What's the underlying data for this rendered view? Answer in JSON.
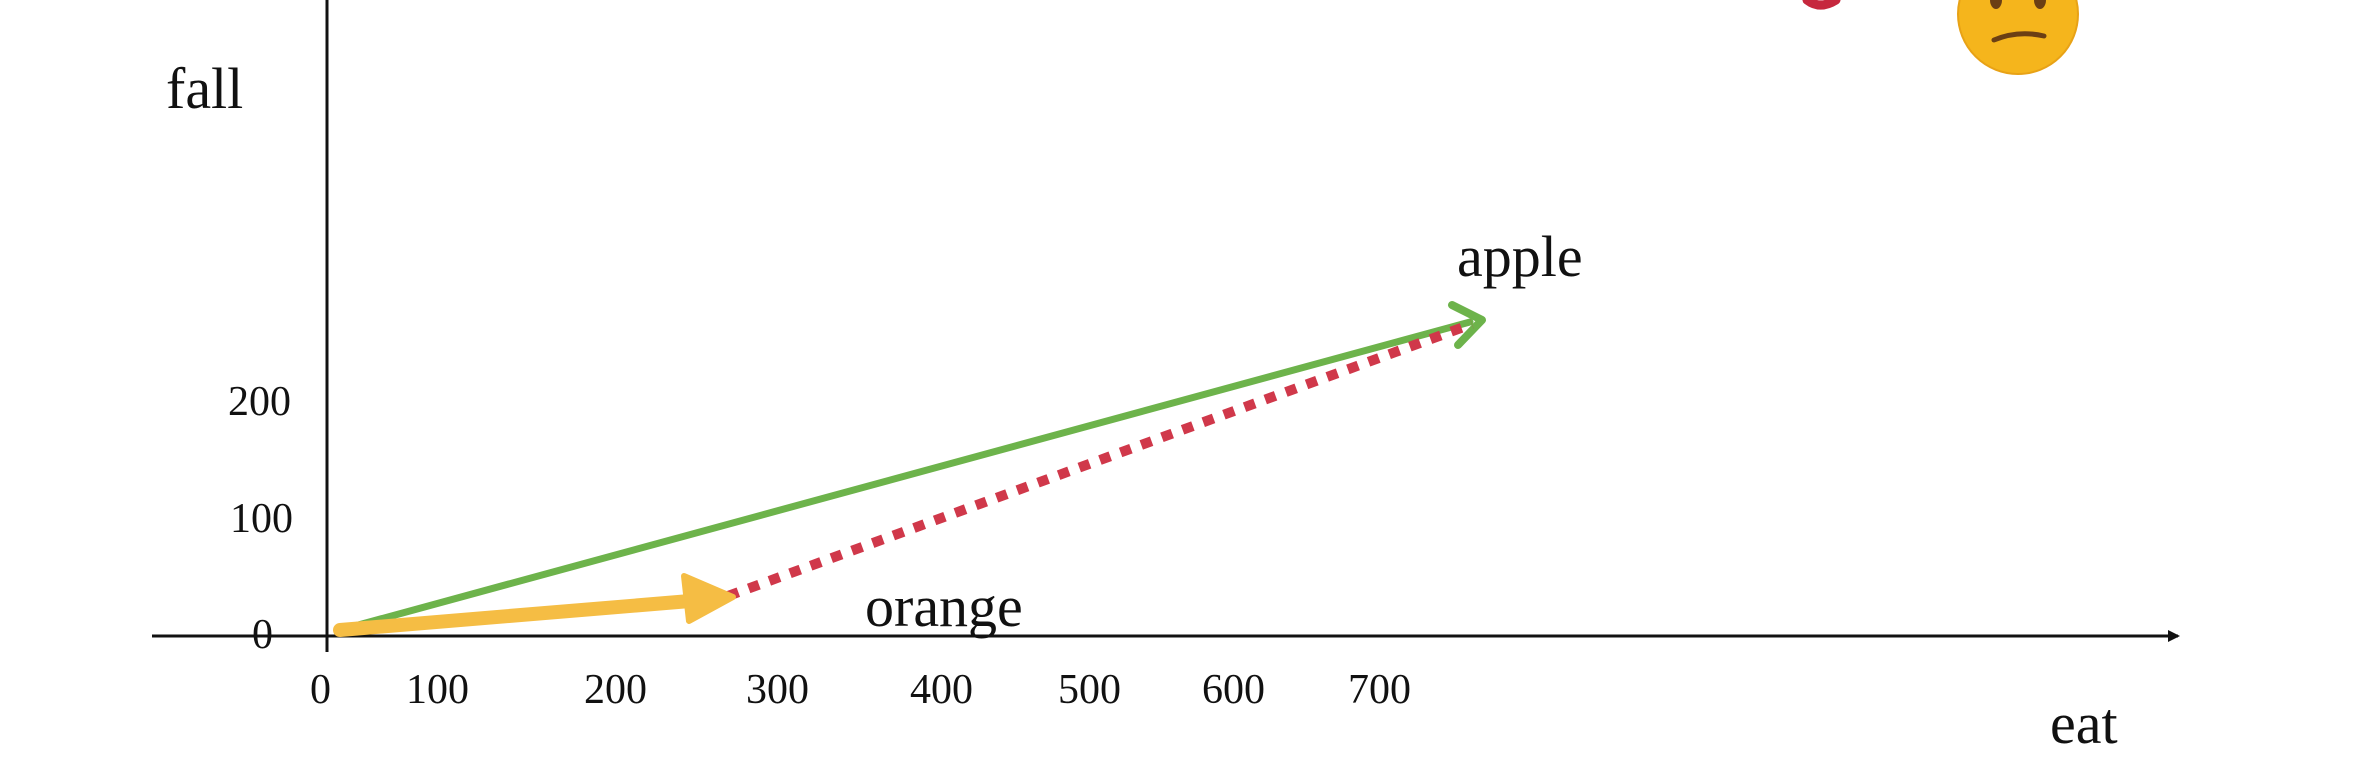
{
  "axes": {
    "x_label": "eat",
    "y_label": "fall",
    "x_ticks": [
      "0",
      "100",
      "200",
      "300",
      "400",
      "500",
      "600",
      "700"
    ],
    "y_ticks": [
      "0",
      "100",
      "200"
    ]
  },
  "vectors": [
    {
      "id": "orange",
      "label": "orange",
      "x": 250,
      "y": 30,
      "color": "#F5BD44",
      "style": "solid-thick"
    },
    {
      "id": "apple",
      "label": "apple",
      "x": 760,
      "y": 260,
      "color": "#6DB34B",
      "style": "solid"
    },
    {
      "id": "difference",
      "label": "",
      "from": "orange",
      "to": "apple",
      "color": "#D0384A",
      "style": "dotted"
    }
  ],
  "decorations": {
    "emoji": "confused-face",
    "emoji_color": "#F5B51C",
    "partial_mark_color": "#C6283E"
  }
}
